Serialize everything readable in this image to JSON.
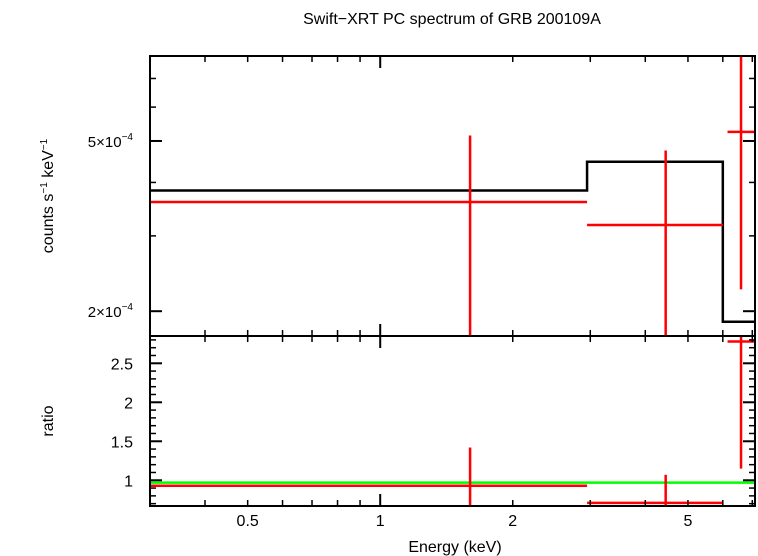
{
  "chart_data": [
    {
      "type": "line",
      "title": "Swift−XRT PC spectrum of GRB 200109A",
      "xlabel": "",
      "ylabel_base": "counts s",
      "ylabel_mid": " keV",
      "ylabel_sup": "−1",
      "xscale": "log",
      "yscale": "log",
      "xlim": [
        0.3,
        7.1
      ],
      "ylim": [
        0.000175,
        0.00079
      ],
      "y_tick_labels": [
        {
          "value": 0.0002,
          "mant": "2×10",
          "exp": "−4"
        },
        {
          "value": 0.0005,
          "mant": "5×10",
          "exp": "−4"
        }
      ],
      "series": [
        {
          "kind": "model-step",
          "color": "#000000",
          "steps": [
            {
              "x0": 0.3,
              "x1": 2.95,
              "y": 0.000383
            },
            {
              "x0": 2.95,
              "x1": 6.0,
              "y": 0.000447
            },
            {
              "x0": 6.0,
              "x1": 7.1,
              "y": 0.000189
            }
          ]
        },
        {
          "kind": "data-crosses",
          "color": "#ff0000",
          "points": [
            {
              "x": 1.6,
              "xlo": 0.3,
              "xhi": 2.95,
              "y": 0.00036,
              "ylo": 0.000175,
              "yhi": 0.000515
            },
            {
              "x": 4.45,
              "xlo": 2.95,
              "xhi": 6.0,
              "y": 0.000318,
              "ylo": 0.000175,
              "yhi": 0.000475
            },
            {
              "x": 6.6,
              "xlo": 6.15,
              "xhi": 7.1,
              "y": 0.000525,
              "ylo": 0.000225,
              "yhi": 0.00079
            }
          ]
        }
      ]
    },
    {
      "type": "line",
      "title": "",
      "xlabel": "Energy (keV)",
      "ylabel": "ratio",
      "xscale": "log",
      "xlim": [
        0.3,
        7.1
      ],
      "ylim": [
        0.67,
        2.85
      ],
      "x_ticks": [
        0.5,
        1,
        2,
        5
      ],
      "x_tick_labels": [
        "0.5",
        "1",
        "2",
        "5"
      ],
      "y_ticks": [
        1,
        1.5,
        2,
        2.5
      ],
      "y_tick_labels": [
        "1",
        "1.5",
        "2",
        "2.5"
      ],
      "series": [
        {
          "kind": "reference-line",
          "color": "#00ff00",
          "y": 0.97
        },
        {
          "kind": "data-crosses",
          "color": "#ff0000",
          "points": [
            {
              "x": 1.6,
              "xlo": 0.3,
              "xhi": 2.95,
              "y": 0.93,
              "ylo": 0.67,
              "yhi": 1.42
            },
            {
              "x": 4.45,
              "xlo": 2.95,
              "xhi": 6.0,
              "y": 0.71,
              "ylo": 0.67,
              "yhi": 1.07
            },
            {
              "x": 6.6,
              "xlo": 6.15,
              "xhi": 7.1,
              "y": 2.78,
              "ylo": 1.15,
              "yhi": 2.85
            }
          ]
        }
      ]
    }
  ]
}
